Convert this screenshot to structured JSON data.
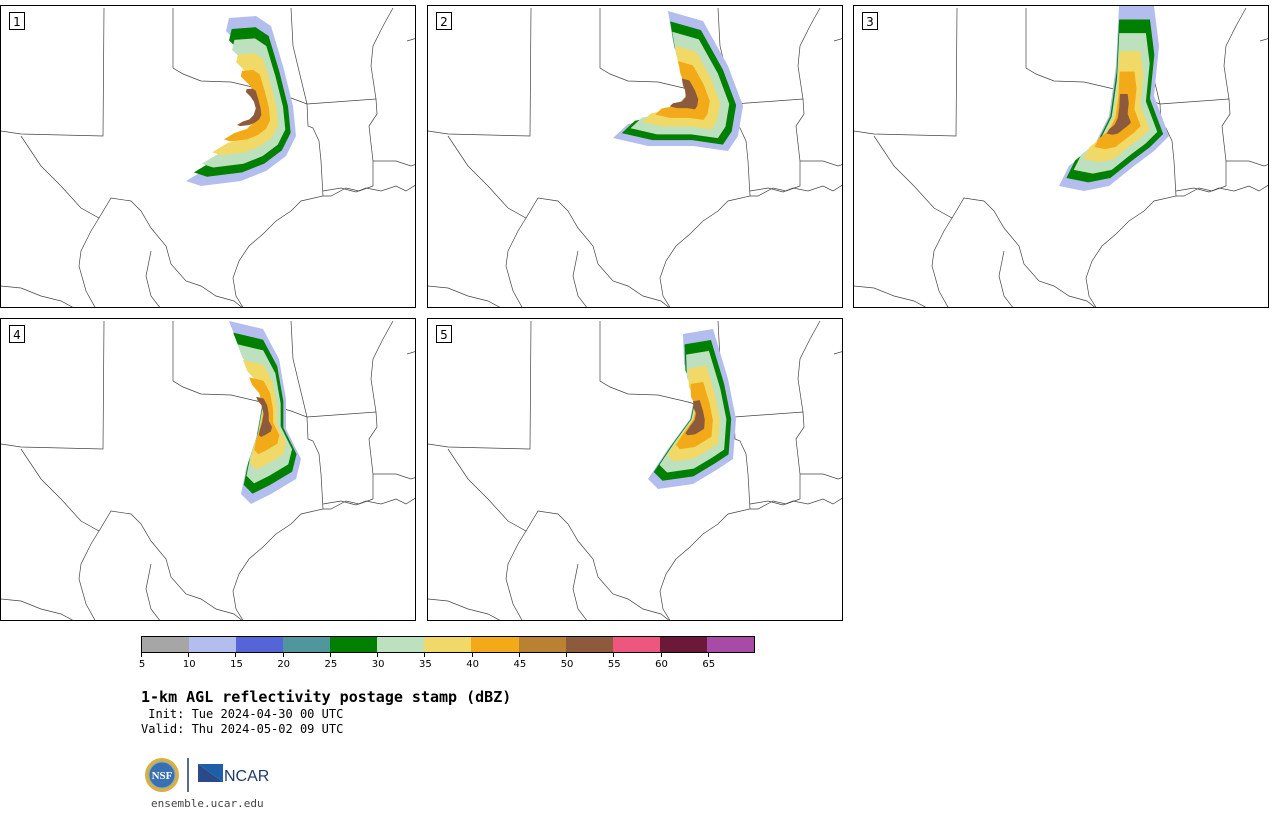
{
  "panels": [
    {
      "label": "1"
    },
    {
      "label": "2"
    },
    {
      "label": "3"
    },
    {
      "label": "4"
    },
    {
      "label": "5"
    }
  ],
  "colorbar": {
    "colors": [
      "#a6a6a6",
      "#b3bdee",
      "#5564d6",
      "#4f979c",
      "#008000",
      "#bde0be",
      "#f1d967",
      "#f2aa18",
      "#b98232",
      "#8e5a3c",
      "#ee5680",
      "#6c1838",
      "#a84ba6"
    ],
    "tick_labels": [
      "5",
      "10",
      "15",
      "20",
      "25",
      "30",
      "35",
      "40",
      "45",
      "50",
      "55",
      "60",
      "65"
    ]
  },
  "title": "1-km AGL reflectivity postage stamp (dBZ)",
  "init": " Init: Tue 2024-04-30 00 UTC",
  "valid": "Valid: Thu 2024-05-02 09 UTC",
  "logos": {
    "nsf": "NSF",
    "ncar": "NCAR"
  },
  "footer_url": "ensemble.ucar.edu"
}
